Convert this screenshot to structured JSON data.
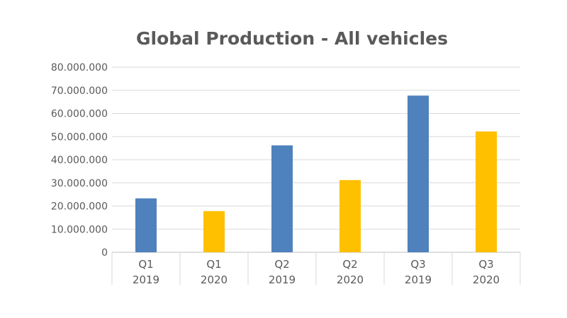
{
  "chart_data": {
    "type": "bar",
    "title": "Global Production - All vehicles",
    "xlabel": "",
    "ylabel": "",
    "categories": [
      [
        "Q1",
        "2019"
      ],
      [
        "Q1",
        "2020"
      ],
      [
        "Q2",
        "2019"
      ],
      [
        "Q2",
        "2020"
      ],
      [
        "Q3",
        "2019"
      ],
      [
        "Q3",
        "2020"
      ]
    ],
    "values": [
      23300000,
      17800000,
      46200000,
      31200000,
      67700000,
      52200000
    ],
    "bar_colors": [
      "#4f81bd",
      "#ffc000",
      "#4f81bd",
      "#ffc000",
      "#4f81bd",
      "#ffc000"
    ],
    "ylim": [
      0,
      80000000
    ],
    "yticks": [
      0,
      10000000,
      20000000,
      30000000,
      40000000,
      50000000,
      60000000,
      70000000,
      80000000
    ],
    "ytick_labels": [
      "0",
      "10.000.000",
      "20.000.000",
      "30.000.000",
      "40.000.000",
      "50.000.000",
      "60.000.000",
      "70.000.000",
      "80.000.000"
    ],
    "grid": true,
    "legend": "none"
  }
}
